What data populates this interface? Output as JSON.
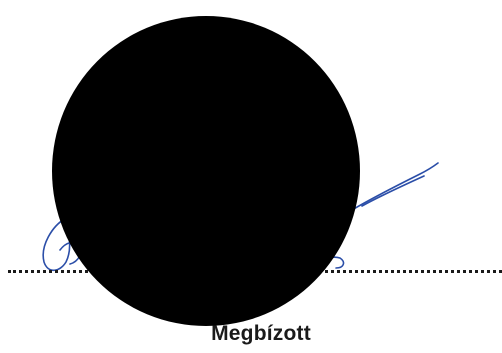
{
  "signature_block": {
    "role_label": "Megbízott",
    "signature_ink_color": "#2b4ea8",
    "redaction_color": "#000000"
  }
}
